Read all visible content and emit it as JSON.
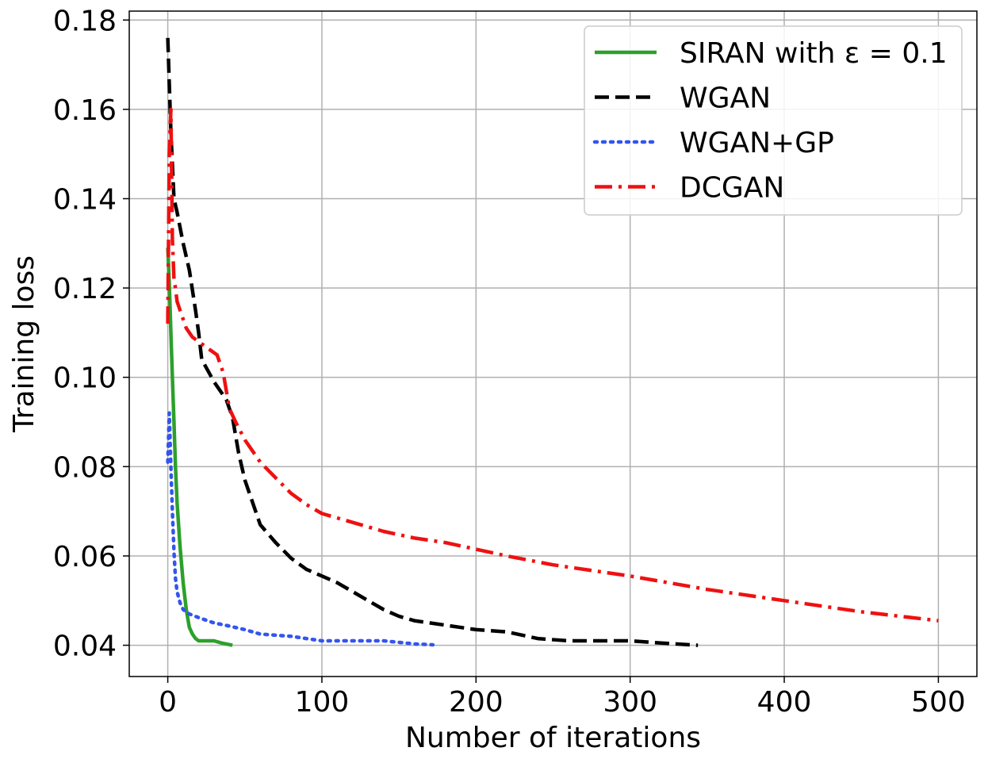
{
  "chart_data": {
    "type": "line",
    "title": "",
    "xlabel": "Number of iterations",
    "ylabel": "Training loss",
    "xlim": [
      -25,
      525
    ],
    "ylim": [
      0.033,
      0.182
    ],
    "xticks": [
      0,
      100,
      200,
      300,
      400,
      500
    ],
    "yticks": [
      0.04,
      0.06,
      0.08,
      0.1,
      0.12,
      0.14,
      0.16,
      0.18
    ],
    "xtick_labels": [
      "0",
      "100",
      "200",
      "300",
      "400",
      "500"
    ],
    "ytick_labels": [
      "0.04",
      "0.06",
      "0.08",
      "0.10",
      "0.12",
      "0.14",
      "0.16",
      "0.18"
    ],
    "grid": true,
    "legend_position": "top-right",
    "series": [
      {
        "name": "SIRAN with ε = 0.1",
        "color": "#2ca02c",
        "style": "solid",
        "x": [
          0,
          1,
          2,
          3,
          4,
          5,
          6,
          8,
          10,
          12,
          14,
          16,
          18,
          20,
          25,
          30,
          35,
          42
        ],
        "y": [
          0.129,
          0.121,
          0.11,
          0.1,
          0.09,
          0.08,
          0.072,
          0.062,
          0.054,
          0.048,
          0.044,
          0.0425,
          0.0415,
          0.041,
          0.041,
          0.041,
          0.0405,
          0.04
        ]
      },
      {
        "name": "WGAN",
        "color": "#000000",
        "style": "dashed",
        "x": [
          0,
          2,
          4,
          6,
          10,
          14,
          18,
          20,
          22,
          30,
          38,
          42,
          46,
          50,
          55,
          60,
          70,
          80,
          90,
          100,
          110,
          120,
          130,
          140,
          150,
          160,
          170,
          180,
          200,
          220,
          240,
          260,
          280,
          300,
          320,
          344
        ],
        "y": [
          0.176,
          0.155,
          0.14,
          0.137,
          0.13,
          0.124,
          0.115,
          0.11,
          0.104,
          0.099,
          0.095,
          0.091,
          0.083,
          0.077,
          0.072,
          0.067,
          0.063,
          0.0595,
          0.057,
          0.0555,
          0.054,
          0.052,
          0.05,
          0.048,
          0.0465,
          0.0455,
          0.045,
          0.0445,
          0.0435,
          0.043,
          0.0415,
          0.041,
          0.041,
          0.041,
          0.0405,
          0.04
        ]
      },
      {
        "name": "WGAN+GP",
        "color": "#3355ee",
        "style": "dotted",
        "x": [
          0,
          1,
          2,
          3,
          4,
          5,
          6,
          8,
          10,
          14,
          20,
          30,
          40,
          50,
          60,
          80,
          100,
          120,
          140,
          160,
          172
        ],
        "y": [
          0.081,
          0.092,
          0.08,
          0.07,
          0.061,
          0.055,
          0.052,
          0.0495,
          0.048,
          0.047,
          0.0462,
          0.045,
          0.0443,
          0.0435,
          0.0425,
          0.042,
          0.041,
          0.041,
          0.041,
          0.0403,
          0.0401
        ]
      },
      {
        "name": "DCGAN",
        "color": "#ee1111",
        "style": "dashdot",
        "x": [
          0,
          1,
          2,
          3,
          4,
          5,
          6,
          8,
          12,
          16,
          20,
          24,
          28,
          32,
          36,
          38,
          40,
          44,
          50,
          60,
          70,
          80,
          90,
          100,
          120,
          140,
          160,
          180,
          200,
          220,
          250,
          300,
          350,
          400,
          450,
          500
        ],
        "y": [
          0.112,
          0.15,
          0.16,
          0.131,
          0.122,
          0.12,
          0.117,
          0.115,
          0.111,
          0.109,
          0.108,
          0.107,
          0.106,
          0.105,
          0.101,
          0.097,
          0.093,
          0.09,
          0.086,
          0.081,
          0.0775,
          0.074,
          0.0715,
          0.0695,
          0.0675,
          0.0655,
          0.064,
          0.063,
          0.0615,
          0.06,
          0.058,
          0.0555,
          0.0525,
          0.05,
          0.0475,
          0.0455
        ]
      }
    ]
  }
}
